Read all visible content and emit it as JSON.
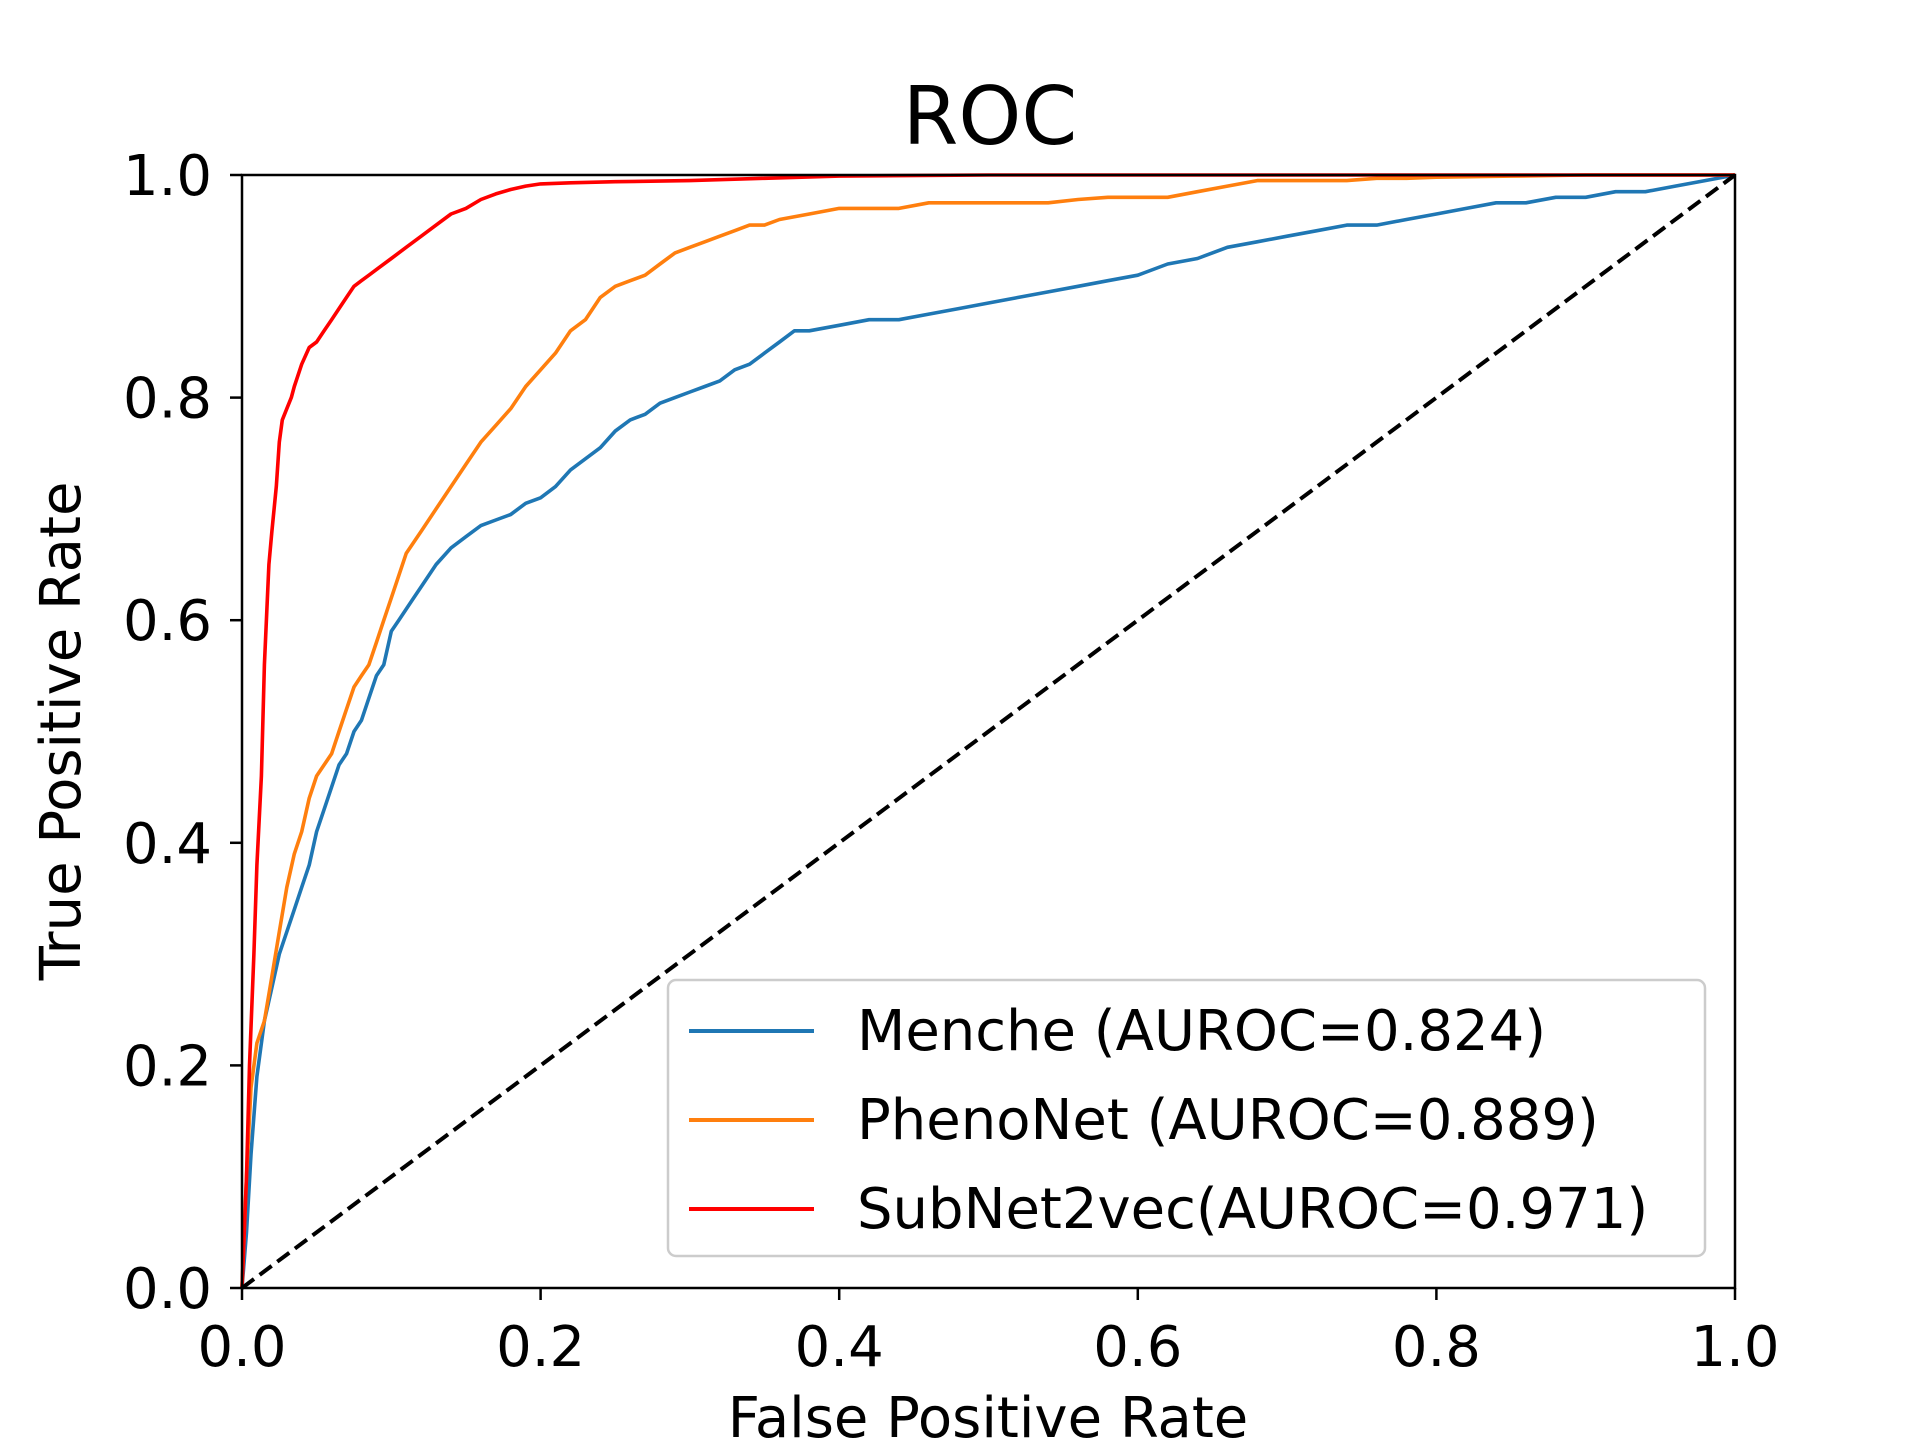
{
  "chart_data": {
    "type": "line",
    "title": "ROC",
    "xlabel": "False Positive Rate",
    "ylabel": "True Positive Rate",
    "xlim": [
      0.0,
      1.0
    ],
    "ylim": [
      0.0,
      1.0
    ],
    "xticks": [
      "0.0",
      "0.2",
      "0.4",
      "0.6",
      "0.8",
      "1.0"
    ],
    "yticks": [
      "0.0",
      "0.2",
      "0.4",
      "0.6",
      "0.8",
      "1.0"
    ],
    "xtick_values": [
      0.0,
      0.2,
      0.4,
      0.6,
      0.8,
      1.0
    ],
    "ytick_values": [
      0.0,
      0.2,
      0.4,
      0.6,
      0.8,
      1.0
    ],
    "grid": false,
    "legend_position": "bottom-right",
    "series": [
      {
        "name": "Menche (AUROC=0.824)",
        "color": "#1f77b4",
        "x": [
          0.0,
          0.003,
          0.006,
          0.01,
          0.015,
          0.02,
          0.025,
          0.03,
          0.035,
          0.04,
          0.045,
          0.05,
          0.055,
          0.06,
          0.065,
          0.07,
          0.075,
          0.08,
          0.085,
          0.09,
          0.095,
          0.1,
          0.105,
          0.11,
          0.115,
          0.12,
          0.13,
          0.14,
          0.15,
          0.16,
          0.17,
          0.18,
          0.19,
          0.2,
          0.21,
          0.22,
          0.23,
          0.24,
          0.25,
          0.26,
          0.27,
          0.28,
          0.29,
          0.3,
          0.31,
          0.32,
          0.33,
          0.34,
          0.35,
          0.36,
          0.37,
          0.38,
          0.4,
          0.42,
          0.44,
          0.46,
          0.48,
          0.5,
          0.52,
          0.54,
          0.56,
          0.58,
          0.6,
          0.62,
          0.64,
          0.66,
          0.68,
          0.7,
          0.72,
          0.74,
          0.76,
          0.78,
          0.8,
          0.82,
          0.84,
          0.86,
          0.88,
          0.9,
          0.92,
          0.94,
          0.96,
          0.98,
          1.0
        ],
        "values": [
          0.0,
          0.05,
          0.12,
          0.19,
          0.24,
          0.27,
          0.3,
          0.32,
          0.34,
          0.36,
          0.38,
          0.41,
          0.43,
          0.45,
          0.47,
          0.48,
          0.5,
          0.51,
          0.53,
          0.55,
          0.56,
          0.59,
          0.6,
          0.61,
          0.62,
          0.63,
          0.65,
          0.665,
          0.675,
          0.685,
          0.69,
          0.695,
          0.705,
          0.71,
          0.72,
          0.735,
          0.745,
          0.755,
          0.77,
          0.78,
          0.785,
          0.795,
          0.8,
          0.805,
          0.81,
          0.815,
          0.825,
          0.83,
          0.84,
          0.85,
          0.86,
          0.86,
          0.865,
          0.87,
          0.87,
          0.875,
          0.88,
          0.885,
          0.89,
          0.895,
          0.9,
          0.905,
          0.91,
          0.92,
          0.925,
          0.935,
          0.94,
          0.945,
          0.95,
          0.955,
          0.955,
          0.96,
          0.965,
          0.97,
          0.975,
          0.975,
          0.98,
          0.98,
          0.985,
          0.985,
          0.99,
          0.995,
          1.0
        ]
      },
      {
        "name": "PhenoNet (AUROC=0.889)",
        "color": "#ff7f0e",
        "x": [
          0.0,
          0.003,
          0.006,
          0.01,
          0.015,
          0.02,
          0.025,
          0.03,
          0.035,
          0.04,
          0.045,
          0.05,
          0.055,
          0.06,
          0.065,
          0.07,
          0.075,
          0.08,
          0.085,
          0.09,
          0.095,
          0.1,
          0.11,
          0.12,
          0.13,
          0.14,
          0.15,
          0.16,
          0.17,
          0.18,
          0.19,
          0.2,
          0.21,
          0.22,
          0.23,
          0.24,
          0.25,
          0.26,
          0.27,
          0.28,
          0.29,
          0.3,
          0.31,
          0.32,
          0.33,
          0.34,
          0.35,
          0.36,
          0.38,
          0.4,
          0.42,
          0.44,
          0.46,
          0.48,
          0.5,
          0.52,
          0.54,
          0.56,
          0.58,
          0.6,
          0.62,
          0.64,
          0.66,
          0.68,
          0.7,
          0.72,
          0.74,
          0.76,
          0.78,
          0.8,
          0.85,
          0.9,
          1.0
        ],
        "values": [
          0.0,
          0.1,
          0.18,
          0.22,
          0.24,
          0.28,
          0.32,
          0.36,
          0.39,
          0.41,
          0.44,
          0.46,
          0.47,
          0.48,
          0.5,
          0.52,
          0.54,
          0.55,
          0.56,
          0.58,
          0.6,
          0.62,
          0.66,
          0.68,
          0.7,
          0.72,
          0.74,
          0.76,
          0.775,
          0.79,
          0.81,
          0.825,
          0.84,
          0.86,
          0.87,
          0.89,
          0.9,
          0.905,
          0.91,
          0.92,
          0.93,
          0.935,
          0.94,
          0.945,
          0.95,
          0.955,
          0.955,
          0.96,
          0.965,
          0.97,
          0.97,
          0.97,
          0.975,
          0.975,
          0.975,
          0.975,
          0.975,
          0.978,
          0.98,
          0.98,
          0.98,
          0.985,
          0.99,
          0.995,
          0.995,
          0.995,
          0.995,
          0.997,
          0.997,
          0.998,
          0.999,
          1.0,
          1.0
        ]
      },
      {
        "name": "SubNet2vec(AUROC=0.971)",
        "color": "#ff0000",
        "x": [
          0.0,
          0.003,
          0.005,
          0.008,
          0.01,
          0.013,
          0.015,
          0.018,
          0.02,
          0.023,
          0.025,
          0.027,
          0.03,
          0.033,
          0.035,
          0.04,
          0.045,
          0.05,
          0.055,
          0.06,
          0.065,
          0.07,
          0.075,
          0.08,
          0.085,
          0.09,
          0.1,
          0.11,
          0.12,
          0.13,
          0.14,
          0.15,
          0.16,
          0.17,
          0.18,
          0.19,
          0.2,
          0.22,
          0.25,
          0.3,
          0.35,
          0.4,
          0.5,
          0.6,
          1.0
        ],
        "values": [
          0.0,
          0.1,
          0.2,
          0.3,
          0.38,
          0.46,
          0.56,
          0.65,
          0.68,
          0.72,
          0.76,
          0.78,
          0.79,
          0.8,
          0.81,
          0.83,
          0.845,
          0.85,
          0.86,
          0.87,
          0.88,
          0.89,
          0.9,
          0.905,
          0.91,
          0.915,
          0.925,
          0.935,
          0.945,
          0.955,
          0.965,
          0.97,
          0.978,
          0.983,
          0.987,
          0.99,
          0.992,
          0.993,
          0.994,
          0.995,
          0.997,
          0.999,
          1.0,
          1.0,
          1.0
        ]
      },
      {
        "name": "",
        "color": "#000000",
        "dashed": true,
        "x": [
          0.0,
          1.0
        ],
        "values": [
          0.0,
          1.0
        ]
      }
    ]
  }
}
